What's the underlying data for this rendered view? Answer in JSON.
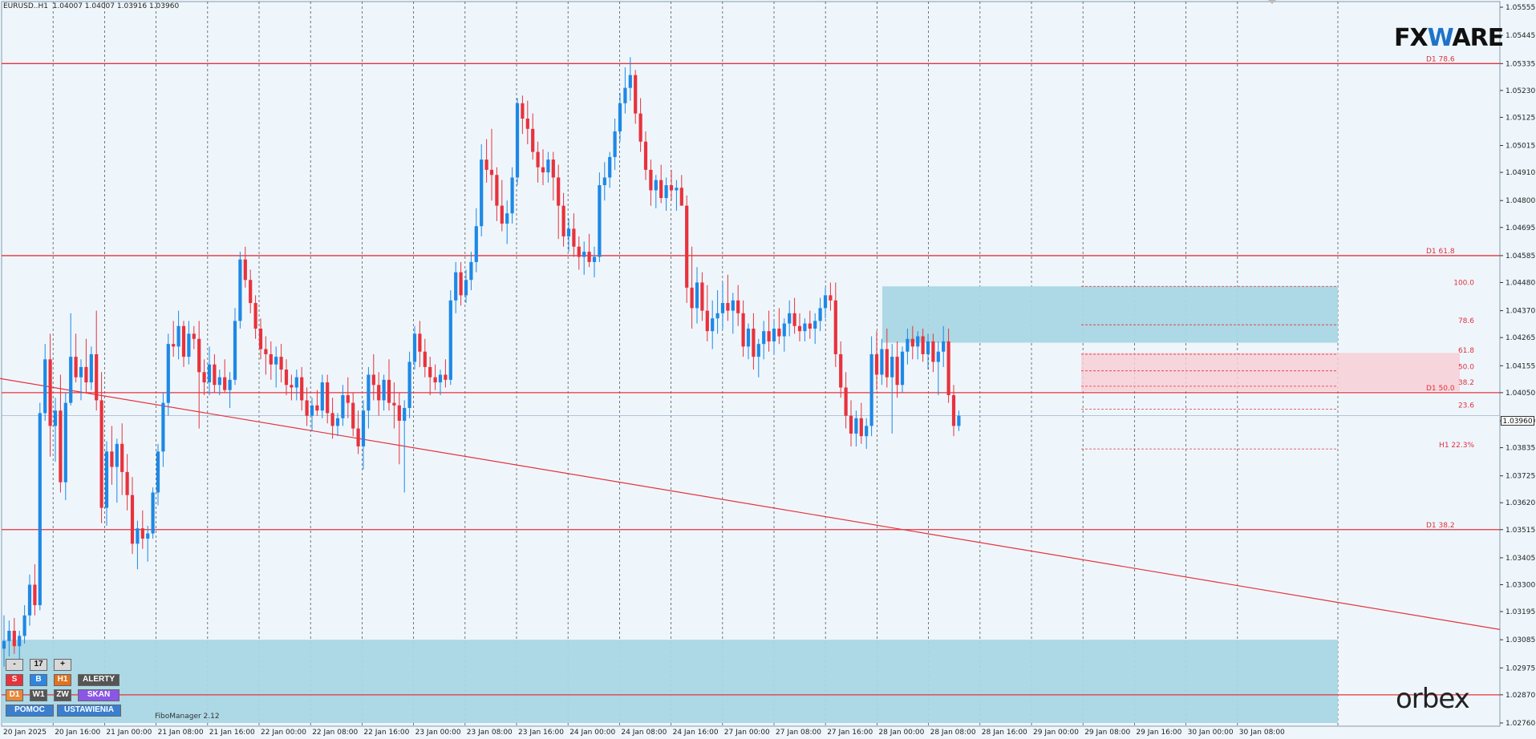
{
  "header": {
    "symbol": "EURUSD..H1",
    "ohlc": "1.04007 1.04007 1.03916 1.03960"
  },
  "logos": {
    "fxware_prefix": "FX",
    "fxware_v": "W",
    "fxware_suffix": "ARE",
    "orbex": "orbex"
  },
  "colors": {
    "bull": "#1e88e5",
    "bear": "#e8323c",
    "level_line": "#e8323c",
    "zone_blue": "#a9d6e4",
    "zone_pink": "#f8cfd6",
    "background": "#eef6fc"
  },
  "price_axis": {
    "labels": [
      "1.05555",
      "1.05445",
      "1.05335",
      "1.05230",
      "1.05125",
      "1.05015",
      "1.04910",
      "1.04800",
      "1.04695",
      "1.04585",
      "1.04480",
      "1.04370",
      "1.04265",
      "1.04155",
      "1.04050",
      "1.03940",
      "1.03835",
      "1.03725",
      "1.03620",
      "1.03515",
      "1.03405",
      "1.03300",
      "1.03195",
      "1.03085",
      "1.02975",
      "1.02870",
      "1.02760"
    ],
    "current_price": "1.03960"
  },
  "time_axis": {
    "labels": [
      "20 Jan 2025",
      "20 Jan 16:00",
      "21 Jan 00:00",
      "21 Jan 08:00",
      "21 Jan 16:00",
      "22 Jan 00:00",
      "22 Jan 08:00",
      "22 Jan 16:00",
      "23 Jan 00:00",
      "23 Jan 08:00",
      "23 Jan 16:00",
      "24 Jan 00:00",
      "24 Jan 08:00",
      "24 Jan 16:00",
      "27 Jan 00:00",
      "27 Jan 08:00",
      "27 Jan 16:00",
      "28 Jan 00:00",
      "28 Jan 08:00",
      "28 Jan 16:00",
      "29 Jan 00:00",
      "29 Jan 08:00",
      "29 Jan 16:00",
      "30 Jan 00:00",
      "30 Jan 08:00"
    ]
  },
  "levels": [
    {
      "label": "D1 78.6",
      "price": 1.05335
    },
    {
      "label": "D1 61.8",
      "price": 1.04585
    },
    {
      "label": "D1 50.0",
      "price": 1.0405
    },
    {
      "label": "D1 38.2",
      "price": 1.03515
    },
    {
      "label": "",
      "price": 1.0287
    }
  ],
  "fibo_levels": [
    {
      "label": "100.0",
      "price": 1.04465
    },
    {
      "label": "78.6",
      "price": 1.04315
    },
    {
      "label": "61.8",
      "price": 1.042
    },
    {
      "label": "50.0",
      "price": 1.04135
    },
    {
      "label": "38.2",
      "price": 1.04075
    },
    {
      "label": "23.6",
      "price": 1.03985
    },
    {
      "label": "H1 22.3%",
      "price": 1.0383
    }
  ],
  "zones": [
    {
      "price_top": 1.04465,
      "price_bottom": 1.04245,
      "color": "blue"
    },
    {
      "price_top": 1.04205,
      "price_bottom": 1.04055,
      "color": "pink"
    },
    {
      "price_top": 1.03085,
      "price_bottom": 1.0276,
      "color": "blue"
    }
  ],
  "trendline": {
    "start_price": 1.04105,
    "end_price": 1.03125
  },
  "chart_data": {
    "type": "candlestick",
    "symbol": "EURUSD",
    "timeframe": "H1",
    "ylim": [
      1.0276,
      1.05555
    ],
    "candles": [
      [
        1.0305,
        1.0318,
        1.0298,
        1.0308
      ],
      [
        1.0308,
        1.0316,
        1.0302,
        1.0312
      ],
      [
        1.0312,
        1.0317,
        1.0303,
        1.0306
      ],
      [
        1.0306,
        1.0312,
        1.0301,
        1.031
      ],
      [
        1.031,
        1.0322,
        1.0307,
        1.0318
      ],
      [
        1.0318,
        1.0334,
        1.0314,
        1.033
      ],
      [
        1.033,
        1.0338,
        1.0318,
        1.0322
      ],
      [
        1.0322,
        1.0401,
        1.032,
        1.0397
      ],
      [
        1.0397,
        1.0424,
        1.0394,
        1.0418
      ],
      [
        1.0418,
        1.0428,
        1.038,
        1.0392
      ],
      [
        1.0392,
        1.0403,
        1.0378,
        1.0398
      ],
      [
        1.0398,
        1.0412,
        1.0366,
        1.037
      ],
      [
        1.037,
        1.0405,
        1.0363,
        1.0401
      ],
      [
        1.0401,
        1.0436,
        1.04,
        1.0419
      ],
      [
        1.0419,
        1.0428,
        1.0409,
        1.0411
      ],
      [
        1.0411,
        1.0418,
        1.0402,
        1.0415
      ],
      [
        1.0415,
        1.0426,
        1.0405,
        1.0409
      ],
      [
        1.0409,
        1.0423,
        1.0406,
        1.042
      ],
      [
        1.042,
        1.0437,
        1.0398,
        1.0402
      ],
      [
        1.0402,
        1.0413,
        1.0354,
        1.036
      ],
      [
        1.036,
        1.0386,
        1.0353,
        1.0382
      ],
      [
        1.0382,
        1.0392,
        1.0369,
        1.0376
      ],
      [
        1.0376,
        1.0387,
        1.0362,
        1.0385
      ],
      [
        1.0385,
        1.0393,
        1.0365,
        1.0374
      ],
      [
        1.0374,
        1.0381,
        1.0359,
        1.0365
      ],
      [
        1.0365,
        1.0372,
        1.0342,
        1.0346
      ],
      [
        1.0346,
        1.0355,
        1.0336,
        1.0352
      ],
      [
        1.0352,
        1.0359,
        1.0344,
        1.0348
      ],
      [
        1.0348,
        1.0353,
        1.0339,
        1.035
      ],
      [
        1.035,
        1.0368,
        1.0348,
        1.0366
      ],
      [
        1.0366,
        1.0385,
        1.0361,
        1.0382
      ],
      [
        1.0382,
        1.0405,
        1.0376,
        1.0401
      ],
      [
        1.0401,
        1.0428,
        1.0396,
        1.0424
      ],
      [
        1.0424,
        1.0433,
        1.0419,
        1.0423
      ],
      [
        1.0423,
        1.0437,
        1.0418,
        1.0431
      ],
      [
        1.0431,
        1.0433,
        1.0415,
        1.0419
      ],
      [
        1.0419,
        1.0433,
        1.0416,
        1.0428
      ],
      [
        1.0428,
        1.0431,
        1.0422,
        1.0426
      ],
      [
        1.0426,
        1.0433,
        1.0391,
        1.0413
      ],
      [
        1.0413,
        1.0418,
        1.0404,
        1.0409
      ],
      [
        1.0409,
        1.0423,
        1.0404,
        1.0416
      ],
      [
        1.0416,
        1.042,
        1.0405,
        1.0408
      ],
      [
        1.0408,
        1.0414,
        1.0404,
        1.0411
      ],
      [
        1.0411,
        1.0418,
        1.0405,
        1.0406
      ],
      [
        1.0406,
        1.0413,
        1.0399,
        1.041
      ],
      [
        1.041,
        1.0438,
        1.0408,
        1.0433
      ],
      [
        1.0433,
        1.046,
        1.043,
        1.0457
      ],
      [
        1.0457,
        1.0462,
        1.0446,
        1.0449
      ],
      [
        1.0449,
        1.0453,
        1.0436,
        1.044
      ],
      [
        1.044,
        1.0443,
        1.0426,
        1.043
      ],
      [
        1.043,
        1.0434,
        1.0418,
        1.0422
      ],
      [
        1.0422,
        1.0427,
        1.0412,
        1.042
      ],
      [
        1.042,
        1.0425,
        1.041,
        1.0416
      ],
      [
        1.0416,
        1.0423,
        1.0407,
        1.0419
      ],
      [
        1.0419,
        1.0424,
        1.0409,
        1.0414
      ],
      [
        1.0414,
        1.0418,
        1.0404,
        1.0408
      ],
      [
        1.0408,
        1.0412,
        1.0402,
        1.0407
      ],
      [
        1.0407,
        1.0414,
        1.0402,
        1.0411
      ],
      [
        1.0411,
        1.0415,
        1.0398,
        1.0402
      ],
      [
        1.0402,
        1.0407,
        1.0392,
        1.0396
      ],
      [
        1.0396,
        1.0403,
        1.039,
        1.04
      ],
      [
        1.04,
        1.0406,
        1.0396,
        1.0398
      ],
      [
        1.0398,
        1.0412,
        1.0395,
        1.0409
      ],
      [
        1.0409,
        1.0412,
        1.0393,
        1.0397
      ],
      [
        1.0397,
        1.0403,
        1.0387,
        1.0392
      ],
      [
        1.0392,
        1.0397,
        1.0388,
        1.0395
      ],
      [
        1.0395,
        1.0408,
        1.0392,
        1.0404
      ],
      [
        1.0404,
        1.0411,
        1.0395,
        1.0401
      ],
      [
        1.0401,
        1.0405,
        1.0388,
        1.0391
      ],
      [
        1.0391,
        1.0398,
        1.0381,
        1.0384
      ],
      [
        1.0384,
        1.0402,
        1.0375,
        1.0398
      ],
      [
        1.0398,
        1.0415,
        1.0391,
        1.0412
      ],
      [
        1.0412,
        1.042,
        1.0402,
        1.0408
      ],
      [
        1.0408,
        1.0413,
        1.0396,
        1.0402
      ],
      [
        1.0402,
        1.0412,
        1.0398,
        1.041
      ],
      [
        1.041,
        1.0418,
        1.0398,
        1.0401
      ],
      [
        1.0401,
        1.0409,
        1.0391,
        1.04
      ],
      [
        1.04,
        1.0405,
        1.0377,
        1.0394
      ],
      [
        1.0394,
        1.0402,
        1.0366,
        1.0399
      ],
      [
        1.0399,
        1.0421,
        1.0395,
        1.0417
      ],
      [
        1.0417,
        1.0431,
        1.0414,
        1.0428
      ],
      [
        1.0428,
        1.0433,
        1.0415,
        1.0421
      ],
      [
        1.0421,
        1.0426,
        1.0411,
        1.0415
      ],
      [
        1.0415,
        1.0419,
        1.0404,
        1.0411
      ],
      [
        1.0411,
        1.0416,
        1.0406,
        1.0409
      ],
      [
        1.0409,
        1.0414,
        1.0404,
        1.0412
      ],
      [
        1.0412,
        1.0418,
        1.0407,
        1.041
      ],
      [
        1.041,
        1.0445,
        1.0408,
        1.0441
      ],
      [
        1.0441,
        1.0456,
        1.0436,
        1.0452
      ],
      [
        1.0452,
        1.0456,
        1.0439,
        1.0443
      ],
      [
        1.0443,
        1.0453,
        1.044,
        1.0449
      ],
      [
        1.0449,
        1.046,
        1.0445,
        1.0456
      ],
      [
        1.0456,
        1.0477,
        1.0452,
        1.047
      ],
      [
        1.047,
        1.0502,
        1.0466,
        1.0496
      ],
      [
        1.0496,
        1.0504,
        1.0487,
        1.0492
      ],
      [
        1.0492,
        1.0508,
        1.048,
        1.049
      ],
      [
        1.049,
        1.0493,
        1.0472,
        1.0478
      ],
      [
        1.0478,
        1.0488,
        1.0468,
        1.0471
      ],
      [
        1.0471,
        1.048,
        1.0463,
        1.0475
      ],
      [
        1.0475,
        1.0493,
        1.0471,
        1.0489
      ],
      [
        1.0489,
        1.052,
        1.0486,
        1.0518
      ],
      [
        1.0518,
        1.0521,
        1.0506,
        1.0512
      ],
      [
        1.0512,
        1.0519,
        1.0502,
        1.0508
      ],
      [
        1.0508,
        1.0514,
        1.0496,
        1.0499
      ],
      [
        1.0499,
        1.0503,
        1.0487,
        1.0493
      ],
      [
        1.0493,
        1.05,
        1.0486,
        1.0491
      ],
      [
        1.0491,
        1.0499,
        1.0487,
        1.0496
      ],
      [
        1.0496,
        1.0499,
        1.048,
        1.0489
      ],
      [
        1.0489,
        1.0494,
        1.0465,
        1.0478
      ],
      [
        1.0478,
        1.0483,
        1.0462,
        1.0466
      ],
      [
        1.0466,
        1.0473,
        1.046,
        1.0469
      ],
      [
        1.0469,
        1.0475,
        1.0458,
        1.0462
      ],
      [
        1.0462,
        1.0466,
        1.0453,
        1.0458
      ],
      [
        1.0458,
        1.0464,
        1.0451,
        1.046
      ],
      [
        1.046,
        1.0467,
        1.0454,
        1.0456
      ],
      [
        1.0456,
        1.0462,
        1.045,
        1.0458
      ],
      [
        1.0458,
        1.0491,
        1.0456,
        1.0486
      ],
      [
        1.0486,
        1.0495,
        1.048,
        1.0489
      ],
      [
        1.0489,
        1.0499,
        1.0485,
        1.0497
      ],
      [
        1.0497,
        1.0512,
        1.0492,
        1.0507
      ],
      [
        1.0507,
        1.0522,
        1.0503,
        1.0518
      ],
      [
        1.0518,
        1.0532,
        1.0514,
        1.0524
      ],
      [
        1.0524,
        1.0536,
        1.0519,
        1.0529
      ],
      [
        1.0529,
        1.0531,
        1.051,
        1.0514
      ],
      [
        1.0514,
        1.052,
        1.0499,
        1.0503
      ],
      [
        1.0503,
        1.0507,
        1.0488,
        1.0492
      ],
      [
        1.0492,
        1.0496,
        1.0478,
        1.0484
      ],
      [
        1.0484,
        1.049,
        1.0477,
        1.0488
      ],
      [
        1.0488,
        1.0494,
        1.0479,
        1.0481
      ],
      [
        1.0481,
        1.0489,
        1.0476,
        1.0486
      ],
      [
        1.0486,
        1.0492,
        1.048,
        1.0484
      ],
      [
        1.0484,
        1.0488,
        1.0476,
        1.0485
      ],
      [
        1.0485,
        1.049,
        1.0478,
        1.0478
      ],
      [
        1.0478,
        1.0482,
        1.044,
        1.0446
      ],
      [
        1.0446,
        1.0462,
        1.043,
        1.0438
      ],
      [
        1.0438,
        1.0454,
        1.0432,
        1.0448
      ],
      [
        1.0448,
        1.0452,
        1.0433,
        1.0437
      ],
      [
        1.0437,
        1.0447,
        1.0425,
        1.0429
      ],
      [
        1.0429,
        1.0441,
        1.0422,
        1.0434
      ],
      [
        1.0434,
        1.0445,
        1.0428,
        1.0436
      ],
      [
        1.0436,
        1.0448,
        1.043,
        1.044
      ],
      [
        1.044,
        1.0451,
        1.0433,
        1.0437
      ],
      [
        1.0437,
        1.0444,
        1.0428,
        1.0441
      ],
      [
        1.0441,
        1.0447,
        1.0431,
        1.0436
      ],
      [
        1.0436,
        1.0441,
        1.0419,
        1.0423
      ],
      [
        1.0423,
        1.0432,
        1.0418,
        1.043
      ],
      [
        1.043,
        1.0436,
        1.0414,
        1.0419
      ],
      [
        1.0419,
        1.0426,
        1.0411,
        1.0424
      ],
      [
        1.0424,
        1.0433,
        1.0418,
        1.0429
      ],
      [
        1.0429,
        1.0437,
        1.0421,
        1.0425
      ],
      [
        1.0425,
        1.0433,
        1.042,
        1.043
      ],
      [
        1.043,
        1.0438,
        1.0424,
        1.0427
      ],
      [
        1.0427,
        1.0434,
        1.0421,
        1.0432
      ],
      [
        1.0432,
        1.0441,
        1.0427,
        1.0436
      ],
      [
        1.0436,
        1.0442,
        1.0428,
        1.0431
      ],
      [
        1.0431,
        1.0436,
        1.0425,
        1.0429
      ],
      [
        1.0429,
        1.0434,
        1.0425,
        1.0432
      ],
      [
        1.0432,
        1.0437,
        1.0426,
        1.043
      ],
      [
        1.043,
        1.0436,
        1.0424,
        1.0433
      ],
      [
        1.0433,
        1.0442,
        1.0429,
        1.0438
      ],
      [
        1.0438,
        1.0446,
        1.0434,
        1.0443
      ],
      [
        1.0443,
        1.0448,
        1.0437,
        1.0441
      ],
      [
        1.0441,
        1.0448,
        1.0415,
        1.042
      ],
      [
        1.042,
        1.0425,
        1.0403,
        1.0407
      ],
      [
        1.0407,
        1.0413,
        1.0391,
        1.0396
      ],
      [
        1.0396,
        1.0402,
        1.0384,
        1.0389
      ],
      [
        1.0389,
        1.0398,
        1.0384,
        1.0395
      ],
      [
        1.0395,
        1.0401,
        1.0385,
        1.0388
      ],
      [
        1.0388,
        1.0395,
        1.0383,
        1.0392
      ],
      [
        1.0392,
        1.0427,
        1.0388,
        1.042
      ],
      [
        1.042,
        1.0429,
        1.0406,
        1.0412
      ],
      [
        1.0412,
        1.0426,
        1.0408,
        1.0422
      ],
      [
        1.0422,
        1.043,
        1.0407,
        1.0411
      ],
      [
        1.0411,
        1.0424,
        1.0389,
        1.0419
      ],
      [
        1.0419,
        1.0425,
        1.0403,
        1.0408
      ],
      [
        1.0408,
        1.0423,
        1.0405,
        1.0421
      ],
      [
        1.0421,
        1.043,
        1.0416,
        1.0426
      ],
      [
        1.0426,
        1.0431,
        1.0418,
        1.0423
      ],
      [
        1.0423,
        1.0429,
        1.0418,
        1.0427
      ],
      [
        1.0427,
        1.043,
        1.0417,
        1.042
      ],
      [
        1.042,
        1.0428,
        1.0414,
        1.0425
      ],
      [
        1.0425,
        1.0428,
        1.0413,
        1.0417
      ],
      [
        1.0417,
        1.0425,
        1.0404,
        1.0421
      ],
      [
        1.0421,
        1.0431,
        1.0415,
        1.0425
      ],
      [
        1.0425,
        1.043,
        1.0401,
        1.0404
      ],
      [
        1.0404,
        1.0408,
        1.0388,
        1.0392
      ],
      [
        1.0392,
        1.0398,
        1.039,
        1.0396
      ]
    ]
  },
  "panel": {
    "minus": "-",
    "value": "17",
    "plus": "+",
    "s": "S",
    "b": "B",
    "h1": "H1",
    "alerty": "ALERTY",
    "d1": "D1",
    "w1": "W1",
    "zw": "ZW",
    "skan": "SKAN",
    "pomoc": "POMOC",
    "ustawienia": "USTAWIENIA"
  },
  "fibo_manager": "FiboManager 2.12"
}
